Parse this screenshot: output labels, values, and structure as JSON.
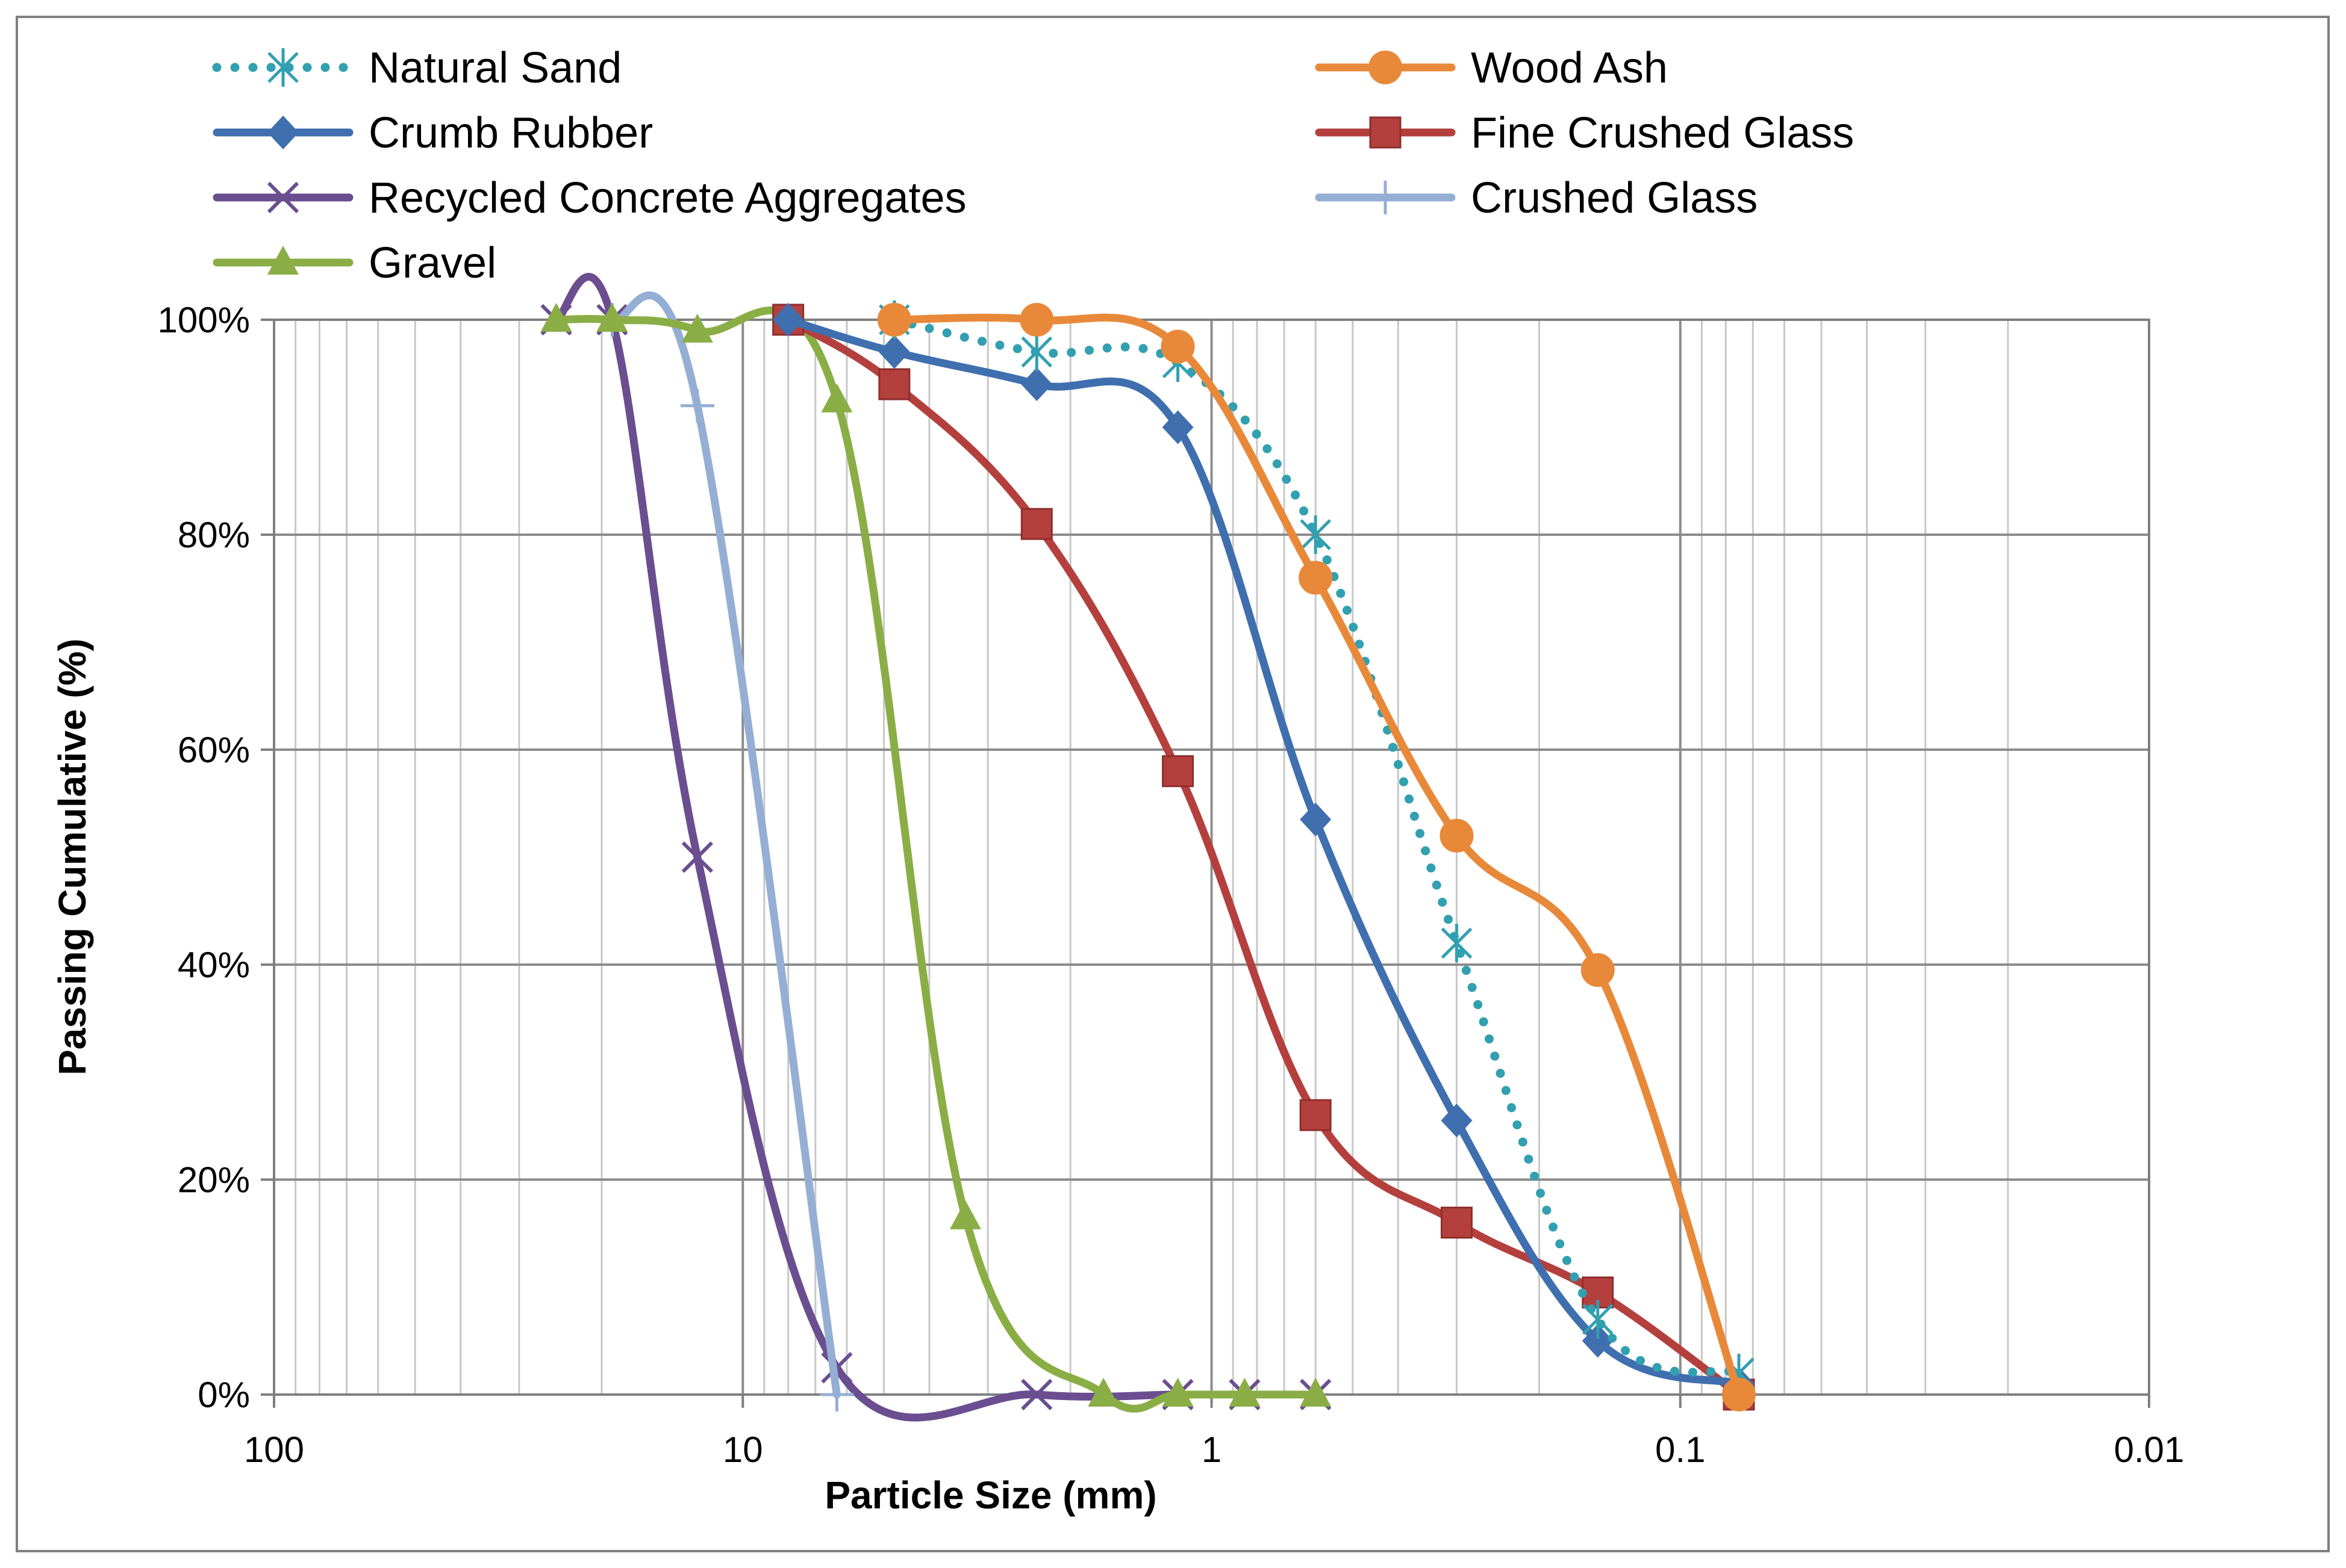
{
  "chart_data": {
    "type": "line",
    "title": "",
    "xlabel": "Particle Size (mm)",
    "ylabel": "Passing Cumulative (%)",
    "x_scale": "log",
    "x_reversed": true,
    "xlim": [
      100,
      0.01
    ],
    "ylim": [
      0,
      100
    ],
    "x_ticks": [
      100,
      10,
      1,
      0.1,
      0.01
    ],
    "x_tick_labels": [
      "100",
      "10",
      "1",
      "0.1",
      "0.01"
    ],
    "y_ticks": [
      0,
      20,
      40,
      60,
      80,
      100
    ],
    "y_tick_labels": [
      "0%",
      "20%",
      "40%",
      "60%",
      "80%",
      "100%"
    ],
    "grid": true,
    "legend_position": "top",
    "series": [
      {
        "name": "Natural Sand",
        "color": "#31A0B0",
        "marker": "asterisk",
        "dash": "dotted",
        "x": [
          4.75,
          2.36,
          1.18,
          0.6,
          0.3,
          0.15,
          0.075
        ],
        "y": [
          100,
          97,
          96,
          80,
          42,
          7,
          2
        ]
      },
      {
        "name": "Wood Ash",
        "color": "#E8893A",
        "marker": "circle",
        "dash": "solid",
        "x": [
          4.75,
          2.36,
          1.18,
          0.6,
          0.3,
          0.15,
          0.075
        ],
        "y": [
          100,
          100,
          97.5,
          76,
          52,
          39.5,
          0
        ]
      },
      {
        "name": "Crumb Rubber",
        "color": "#3F6FAE",
        "marker": "diamond",
        "dash": "solid",
        "x": [
          8,
          4.75,
          2.36,
          1.18,
          0.6,
          0.3,
          0.15,
          0.075
        ],
        "y": [
          100,
          97,
          94,
          90,
          53.5,
          25.5,
          5,
          1
        ]
      },
      {
        "name": "Fine Crushed Glass",
        "color": "#B4403E",
        "marker": "square",
        "dash": "solid",
        "x": [
          8,
          4.75,
          2.36,
          1.18,
          0.6,
          0.3,
          0.15,
          0.075
        ],
        "y": [
          100,
          94,
          81,
          58,
          26,
          16,
          9.5,
          0
        ]
      },
      {
        "name": "Recycled Concrete Aggregates",
        "color": "#6B4E90",
        "marker": "x",
        "dash": "solid",
        "x": [
          25,
          19,
          12.5,
          6.3,
          2.36,
          1.18,
          0.85,
          0.6
        ],
        "y": [
          100,
          100,
          50,
          2.5,
          0,
          0,
          0,
          0
        ]
      },
      {
        "name": "Crushed Glass",
        "color": "#95AED4",
        "marker": "plus",
        "dash": "solid",
        "x": [
          19,
          12.5,
          6.3
        ],
        "y": [
          100,
          92,
          0
        ]
      },
      {
        "name": "Gravel",
        "color": "#8AAE45",
        "marker": "triangle",
        "dash": "solid",
        "x": [
          25,
          19,
          12.5,
          6.3,
          3.35,
          1.7,
          1.18,
          0.85,
          0.6
        ],
        "y": [
          100,
          100,
          99,
          92.5,
          16.5,
          0,
          0,
          0,
          0
        ]
      }
    ]
  }
}
